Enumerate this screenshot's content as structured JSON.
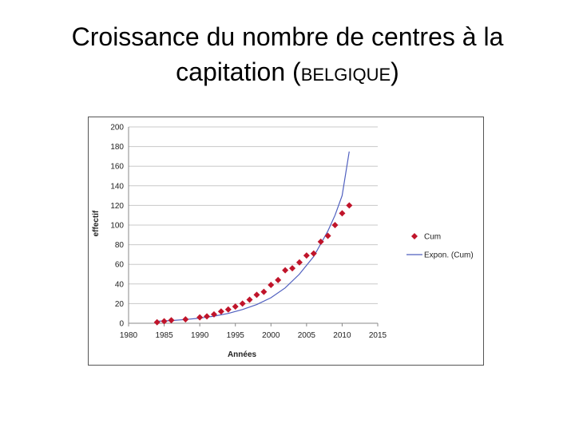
{
  "slide": {
    "title_line1": "Croissance du nombre de centres à la",
    "title_line2_prefix": "capitation (",
    "title_line2_caps": "BELGIQUE",
    "title_line2_suffix": ")"
  },
  "chart_data": {
    "type": "scatter",
    "xlabel": "Années",
    "ylabel": "effectif",
    "xlim": [
      1980,
      2015
    ],
    "ylim": [
      0,
      200
    ],
    "x_ticks": [
      1980,
      1985,
      1990,
      1995,
      2000,
      2005,
      2010,
      2015
    ],
    "y_ticks": [
      0,
      20,
      40,
      60,
      80,
      100,
      120,
      140,
      160,
      180,
      200
    ],
    "grid": "horizontal",
    "legend_position": "right",
    "series": [
      {
        "name": "Cum",
        "kind": "markers",
        "marker": "diamond",
        "color": "#c0142a",
        "x": [
          1984,
          1985,
          1986,
          1988,
          1990,
          1991,
          1992,
          1993,
          1994,
          1995,
          1996,
          1997,
          1998,
          1999,
          2000,
          2001,
          2002,
          2003,
          2004,
          2005,
          2006,
          2007,
          2008,
          2009,
          2010,
          2011
        ],
        "y": [
          1,
          2,
          3,
          4,
          6,
          7,
          9,
          12,
          14,
          17,
          20,
          24,
          29,
          32,
          39,
          44,
          54,
          56,
          62,
          69,
          71,
          83,
          89,
          100,
          112,
          120
        ]
      },
      {
        "name": "Expon. (Cum)",
        "kind": "line",
        "color": "#4f5fbf",
        "x": [
          1984,
          1986,
          1988,
          1990,
          1992,
          1994,
          1996,
          1998,
          2000,
          2002,
          2004,
          2006,
          2008,
          2009,
          2010,
          2011
        ],
        "y": [
          2,
          2.8,
          3.8,
          5.2,
          7.2,
          10,
          14,
          19,
          26,
          36,
          50,
          68,
          94,
          110,
          130,
          175
        ]
      }
    ]
  }
}
